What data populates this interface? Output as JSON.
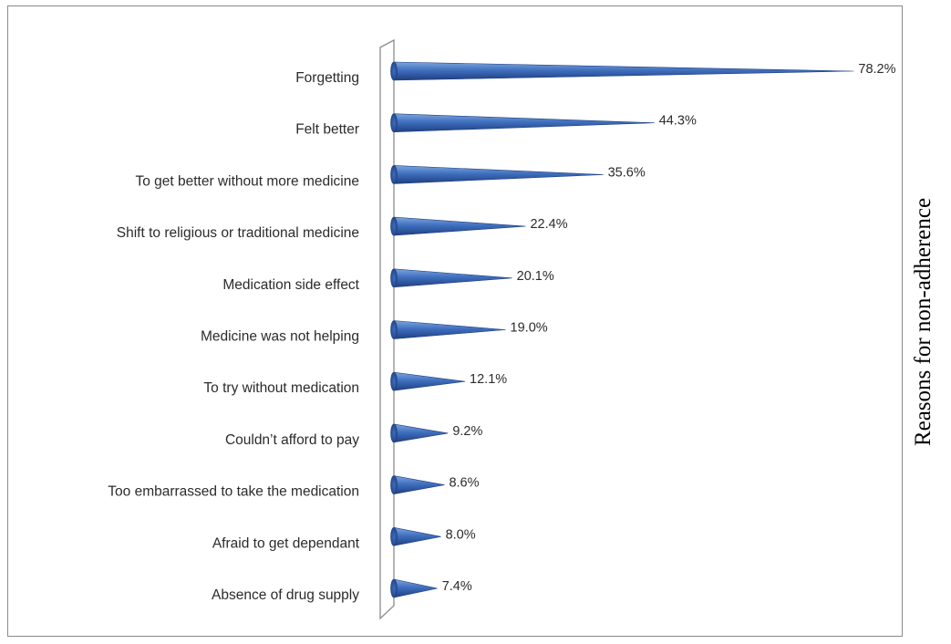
{
  "side_label": "Reasons for non-adherence",
  "colors": {
    "cone_light": "#7ea6dc",
    "cone_mid": "#3f6fbf",
    "cone_dark": "#1f3f80",
    "axis": "#8c8c8c"
  },
  "chart_data": {
    "type": "bar",
    "orientation": "horizontal",
    "style": "3d-cone",
    "categories": [
      "Forgetting",
      "Felt better",
      "To get better without more medicine",
      "Shift to religious or traditional medicine",
      "Medication side effect",
      "Medicine was not helping",
      "To try without medication",
      "Couldn’t afford to pay",
      "Too embarrassed to take the medication",
      "Afraid to get dependant",
      "Absence of drug supply"
    ],
    "values": [
      78.2,
      44.3,
      35.6,
      22.4,
      20.1,
      19.0,
      12.1,
      9.2,
      8.6,
      8.0,
      7.4
    ],
    "value_labels": [
      "78.2%",
      "44.3%",
      "35.6%",
      "22.4%",
      "20.1%",
      "19.0%",
      "12.1%",
      "9.2%",
      "8.6%",
      "8.0%",
      "7.4%"
    ],
    "title": "",
    "xlabel": "",
    "ylabel": "",
    "xlim": [
      0,
      80
    ],
    "grid": false,
    "legend": "none"
  }
}
